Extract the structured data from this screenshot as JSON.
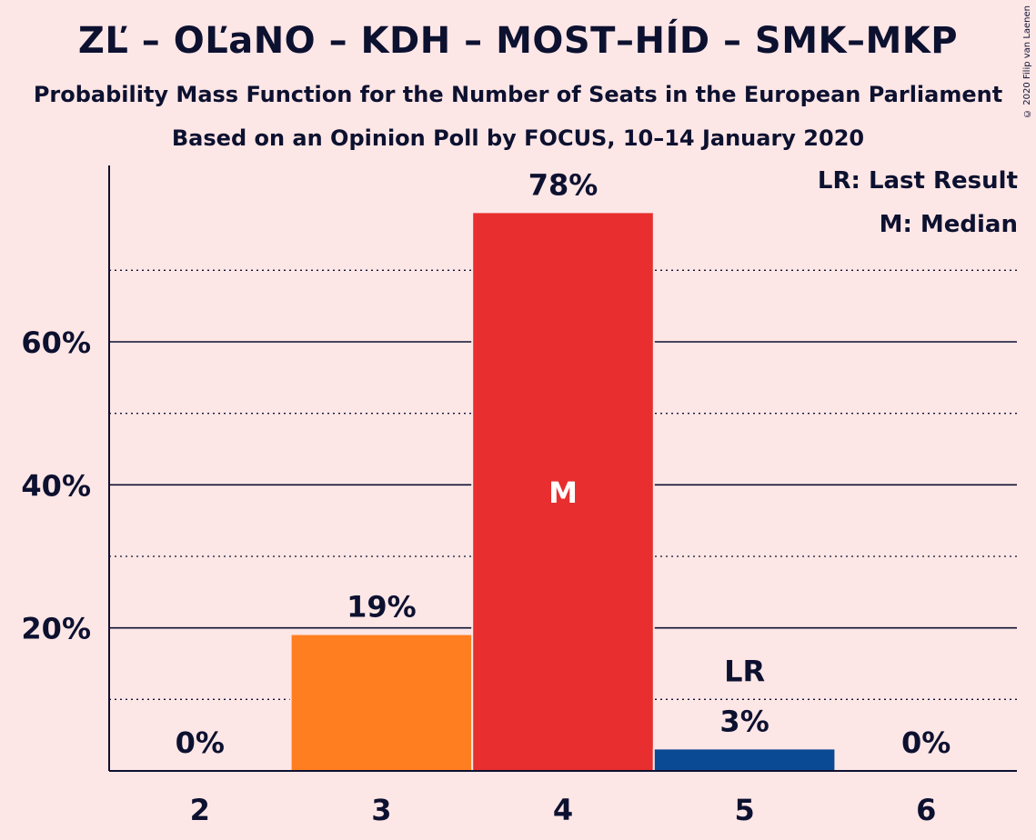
{
  "title": "ZĽ – OĽaNO – KDH – MOST–HÍD – SMK–MKP",
  "subtitle1": "Probability Mass Function for the Number of Seats in the European Parliament",
  "subtitle2": "Based on an Opinion Poll by FOCUS, 10–14 January 2020",
  "copyright": "© 2020 Filip van Laenen",
  "legend": {
    "last_result": "LR: Last Result",
    "median": "M: Median"
  },
  "chart_data": {
    "type": "bar",
    "categories": [
      "2",
      "3",
      "4",
      "5",
      "6"
    ],
    "values": [
      0,
      19,
      78,
      3,
      0
    ],
    "value_labels": [
      "0%",
      "19%",
      "78%",
      "3%",
      "0%"
    ],
    "bar_colors": [
      "#e82e2e",
      "#ff7f20",
      "#e82e2e",
      "#0a4a94",
      "#e82e2e"
    ],
    "ylim": [
      0,
      85
    ],
    "y_ticks": [
      20,
      40,
      60
    ],
    "y_tick_labels": [
      "20%",
      "40%",
      "60%"
    ],
    "y_minor_ticks": [
      10,
      30,
      50,
      70
    ],
    "median_category": "4",
    "median_marker": "M",
    "last_result_category": "5",
    "last_result_marker": "LR"
  }
}
